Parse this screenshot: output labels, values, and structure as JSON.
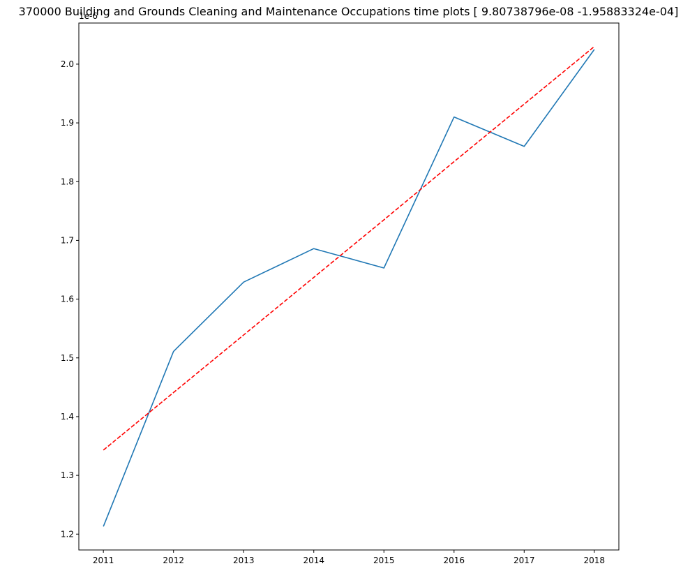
{
  "chart_data": {
    "type": "line",
    "title": "370000 Building and Grounds Cleaning and Maintenance Occupations time plots [ 9.80738796e-08 -1.95883324e-04]",
    "xlabel": "",
    "ylabel": "",
    "y_offset_label": "1e-6",
    "x": [
      2011,
      2012,
      2013,
      2014,
      2015,
      2016,
      2017,
      2018
    ],
    "x_tick_labels": [
      "2011",
      "2012",
      "2013",
      "2014",
      "2015",
      "2016",
      "2017",
      "2018"
    ],
    "y_ticks": [
      1.2,
      1.3,
      1.4,
      1.5,
      1.6,
      1.7,
      1.8,
      1.9,
      2.0
    ],
    "y_tick_labels": [
      "1.2",
      "1.3",
      "1.4",
      "1.5",
      "1.6",
      "1.7",
      "1.8",
      "1.9",
      "2.0"
    ],
    "xlim": [
      2010.65,
      2018.35
    ],
    "ylim": [
      1.173,
      2.07
    ],
    "grid": false,
    "legend": "none",
    "series": [
      {
        "values": [
          1.213,
          1.511,
          1.629,
          1.686,
          1.653,
          1.91,
          1.86,
          2.025
        ],
        "color": "#1f77b4",
        "style": "solid"
      },
      {
        "values": [
          1.343,
          1.441,
          1.539,
          1.637,
          1.735,
          1.834,
          1.932,
          2.03
        ],
        "color": "#ff0000",
        "style": "dashed"
      }
    ]
  }
}
